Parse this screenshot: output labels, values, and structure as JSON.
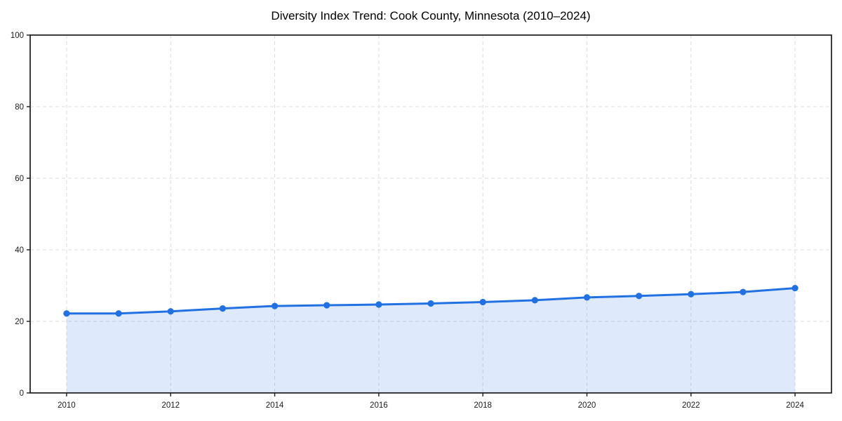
{
  "chart_data": {
    "type": "line",
    "title": "Diversity Index Trend: Cook County, Minnesota (2010–2024)",
    "xlabel": "",
    "ylabel": "",
    "x": [
      2010,
      2011,
      2012,
      2013,
      2014,
      2015,
      2016,
      2017,
      2018,
      2019,
      2020,
      2021,
      2022,
      2023,
      2024
    ],
    "values": [
      22.2,
      22.2,
      22.8,
      23.6,
      24.3,
      24.5,
      24.7,
      25.0,
      25.4,
      25.9,
      26.7,
      27.1,
      27.6,
      28.2,
      29.3
    ],
    "series_name": "Diversity Index",
    "xlim": [
      2009.3,
      2024.7
    ],
    "ylim": [
      0,
      100
    ],
    "xticks": [
      2010,
      2012,
      2014,
      2016,
      2018,
      2020,
      2022,
      2024
    ],
    "xtick_labels": [
      "2010",
      "2012",
      "2014",
      "2016",
      "2018",
      "2020",
      "2022",
      "2024"
    ],
    "yticks": [
      0,
      20,
      40,
      60,
      80,
      100
    ],
    "ytick_labels": [
      "0",
      "20",
      "40",
      "60",
      "80",
      "100"
    ],
    "grid": true,
    "legend": "none",
    "line_color": "#2171e3",
    "fill_color": "rgba(33,113,227,0.15)",
    "grid_color": "#dcdcdc",
    "axis_color": "#1a1a1a",
    "tick_label_color": "#1a1a1a",
    "title_color": "#000000"
  }
}
